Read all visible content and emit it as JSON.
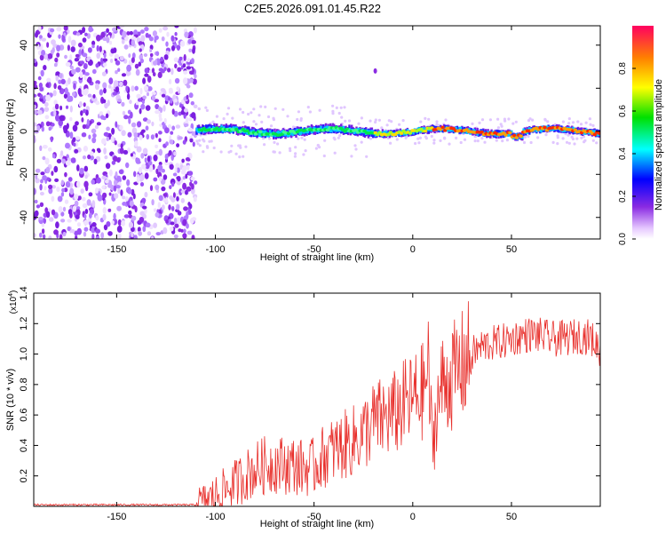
{
  "title": "C2E5.2026.091.01.45.R22",
  "chart_data": [
    {
      "type": "heatmap",
      "xlabel": "Height of straight line (km)",
      "ylabel": "Frequency (Hz)",
      "xlim": [
        -192,
        95
      ],
      "ylim": [
        -50,
        49
      ],
      "xticks": [
        -150,
        -100,
        -50,
        0,
        50
      ],
      "xtick_labels": [
        "-150",
        "-100",
        "-50",
        "0",
        "50"
      ],
      "yticks": [
        -40,
        -20,
        0,
        20,
        40
      ],
      "ytick_labels": [
        "-40",
        "-20",
        "0",
        "20",
        "40"
      ],
      "noise_region_x": [
        -192,
        -110
      ],
      "signal_frequency_hz": 0,
      "colorbar": {
        "label": "Normalized spectral amplitude",
        "range": [
          0.0,
          1.0
        ],
        "ticks": [
          0.0,
          0.2,
          0.4,
          0.6,
          0.8
        ],
        "tick_labels": [
          "0.0",
          "0.2",
          "0.4",
          "0.6",
          "0.8"
        ]
      }
    },
    {
      "type": "line",
      "xlabel": "Height of straight line (km)",
      "ylabel": "SNR (10 * v/v)",
      "multiplier_base": "(x10",
      "multiplier_exp": "4",
      "multiplier_close": ")",
      "xlim": [
        -192,
        95
      ],
      "ylim": [
        0,
        1.4
      ],
      "xticks": [
        -150,
        -100,
        -50,
        0,
        50
      ],
      "xtick_labels": [
        "-150",
        "-100",
        "-50",
        "0",
        "50"
      ],
      "yticks": [
        0.2,
        0.4,
        0.6,
        0.8,
        1.0,
        1.2,
        1.4
      ],
      "ytick_labels": [
        "0.2",
        "0.4",
        "0.6",
        "0.8",
        "1.0",
        "1.2",
        "1.4"
      ],
      "series_color": "#e8302c",
      "x": [
        -192,
        -110,
        -105,
        -100,
        -95,
        -90,
        -85,
        -80,
        -75,
        -70,
        -65,
        -60,
        -55,
        -50,
        -45,
        -40,
        -35,
        -30,
        -25,
        -20,
        -15,
        -10,
        -5,
        0,
        5,
        8,
        10,
        12,
        15,
        20,
        25,
        30,
        35,
        40,
        45,
        50,
        55,
        60,
        65,
        70,
        75,
        80,
        85,
        90,
        95
      ],
      "y": [
        0.01,
        0.01,
        0.03,
        0.07,
        0.11,
        0.15,
        0.2,
        0.24,
        0.27,
        0.28,
        0.27,
        0.27,
        0.25,
        0.26,
        0.33,
        0.37,
        0.4,
        0.43,
        0.48,
        0.55,
        0.58,
        0.6,
        0.66,
        0.7,
        0.75,
        0.9,
        0.35,
        0.65,
        0.8,
        0.85,
        0.92,
        1.0,
        1.05,
        1.07,
        1.08,
        1.1,
        1.12,
        1.13,
        1.12,
        1.1,
        1.1,
        1.11,
        1.12,
        1.11,
        1.03
      ]
    }
  ]
}
